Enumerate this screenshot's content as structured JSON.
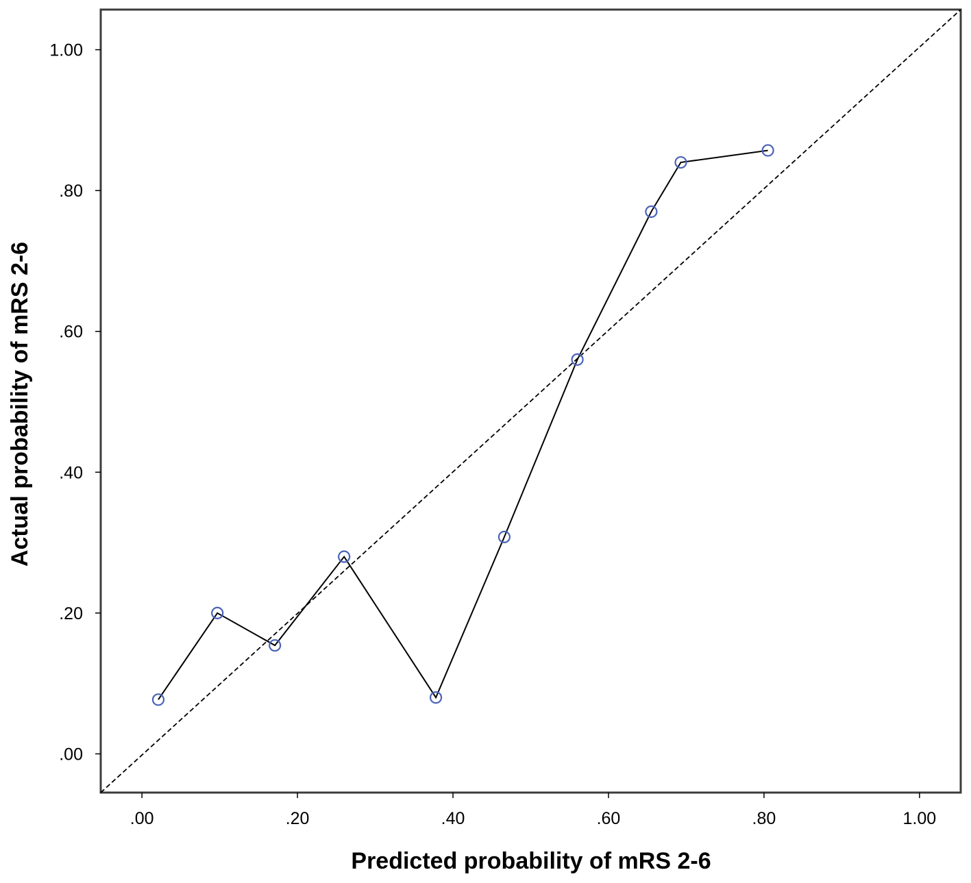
{
  "chart_data": {
    "type": "line",
    "title": "",
    "xlabel": "Predicted probability of mRS 2-6",
    "ylabel": "Actual probability of mRS 2-6",
    "xlim": [
      -0.053,
      1.053
    ],
    "ylim": [
      -0.055,
      1.057
    ],
    "x_ticks": [
      0,
      0.2,
      0.4,
      0.6,
      0.8,
      1.0
    ],
    "y_ticks": [
      0,
      0.2,
      0.4,
      0.6,
      0.8,
      1.0
    ],
    "x_tick_labels": [
      ".00",
      ".20",
      ".40",
      ".60",
      ".80",
      "1.00"
    ],
    "y_tick_labels": [
      ".00",
      ".20",
      ".40",
      ".60",
      ".80",
      "1.00"
    ],
    "grid": false,
    "legend": "none",
    "reference_line": {
      "style": "dashed",
      "from": [
        -0.053,
        -0.055
      ],
      "to": [
        1.053,
        1.057
      ]
    },
    "series": [
      {
        "x": [
          0.021,
          0.097,
          0.171,
          0.26,
          0.378,
          0.466,
          0.56,
          0.655,
          0.693,
          0.805
        ],
        "y": [
          0.077,
          0.2,
          0.154,
          0.28,
          0.08,
          0.308,
          0.56,
          0.77,
          0.84,
          0.857
        ],
        "marker": "open-circle",
        "marker_color": "#4a63b8",
        "line_color": "#000000"
      }
    ]
  }
}
